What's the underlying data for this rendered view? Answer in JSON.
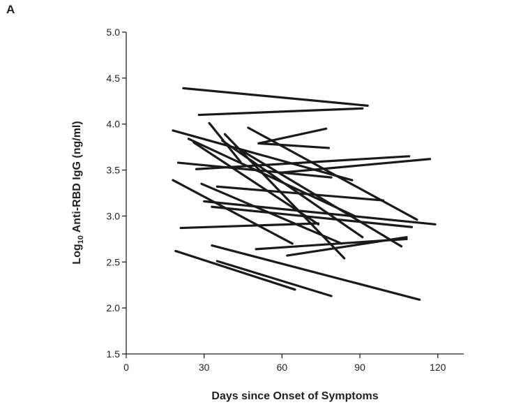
{
  "panel_label": "A",
  "chart_data": {
    "type": "line",
    "title": "",
    "xlabel": "Days since Onset of Symptoms",
    "ylabel_parts": [
      "Log",
      "10",
      " Anti-RBD IgG (ng/ml)"
    ],
    "xlim": [
      0,
      130
    ],
    "ylim": [
      1.5,
      5.0
    ],
    "xticks": [
      0,
      30,
      60,
      90,
      120
    ],
    "yticks": [
      "1.5",
      "2.0",
      "2.5",
      "3.0",
      "3.5",
      "4.0",
      "4.5",
      "5.0"
    ],
    "grid": false,
    "series_color": "#1a1a1a",
    "series": [
      {
        "x": [
          22,
          93
        ],
        "y": [
          4.39,
          4.2
        ]
      },
      {
        "x": [
          28,
          91
        ],
        "y": [
          4.1,
          4.17
        ]
      },
      {
        "x": [
          18,
          87
        ],
        "y": [
          3.93,
          3.39
        ]
      },
      {
        "x": [
          32,
          44
        ],
        "y": [
          4.01,
          3.59
        ]
      },
      {
        "x": [
          47,
          112
        ],
        "y": [
          3.96,
          2.96
        ]
      },
      {
        "x": [
          38,
          84
        ],
        "y": [
          3.89,
          2.54
        ]
      },
      {
        "x": [
          51,
          78
        ],
        "y": [
          3.79,
          3.74
        ]
      },
      {
        "x": [
          51,
          77
        ],
        "y": [
          3.79,
          3.95
        ]
      },
      {
        "x": [
          20,
          79
        ],
        "y": [
          3.58,
          3.42
        ]
      },
      {
        "x": [
          27,
          109
        ],
        "y": [
          3.51,
          3.65
        ]
      },
      {
        "x": [
          59,
          117
        ],
        "y": [
          3.47,
          3.62
        ]
      },
      {
        "x": [
          18,
          64
        ],
        "y": [
          3.39,
          2.7
        ]
      },
      {
        "x": [
          29,
          83
        ],
        "y": [
          3.35,
          2.7
        ]
      },
      {
        "x": [
          35,
          99
        ],
        "y": [
          3.32,
          3.17
        ]
      },
      {
        "x": [
          30,
          119
        ],
        "y": [
          3.16,
          2.91
        ]
      },
      {
        "x": [
          33,
          110
        ],
        "y": [
          3.1,
          2.88
        ]
      },
      {
        "x": [
          21,
          74
        ],
        "y": [
          2.87,
          2.92
        ]
      },
      {
        "x": [
          50,
          108
        ],
        "y": [
          2.64,
          2.75
        ]
      },
      {
        "x": [
          62,
          108
        ],
        "y": [
          2.57,
          2.77
        ]
      },
      {
        "x": [
          33,
          113
        ],
        "y": [
          2.68,
          2.09
        ]
      },
      {
        "x": [
          19,
          65
        ],
        "y": [
          2.62,
          2.2
        ]
      },
      {
        "x": [
          35,
          79
        ],
        "y": [
          2.51,
          2.13
        ]
      },
      {
        "x": [
          26,
          74
        ],
        "y": [
          3.8,
          2.91
        ]
      },
      {
        "x": [
          37,
          91
        ],
        "y": [
          3.82,
          2.77
        ]
      },
      {
        "x": [
          44,
          106
        ],
        "y": [
          3.72,
          2.67
        ]
      },
      {
        "x": [
          24,
          88
        ],
        "y": [
          3.84,
          3.0
        ]
      }
    ]
  }
}
